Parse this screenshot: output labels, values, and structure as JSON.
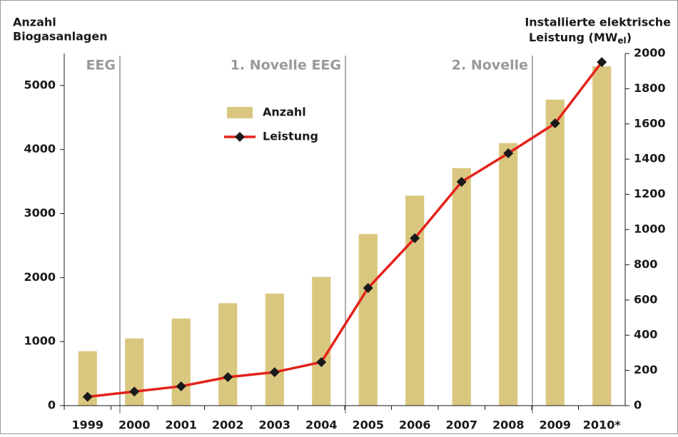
{
  "chart_data": {
    "type": "bar",
    "y_label": [
      "Anzahl",
      "Biogasanlagen"
    ],
    "y2_label": {
      "line1": "Installierte elektrische",
      "line2": "Leistung (MW",
      "sub": "el",
      "after": ")"
    },
    "categories": [
      "1999",
      "2000",
      "2001",
      "2002",
      "2003",
      "2004",
      "2005",
      "2006",
      "2007",
      "2008",
      "2009",
      "2010*"
    ],
    "series": [
      {
        "name": "Anzahl",
        "type": "bar",
        "color": "#dac77f",
        "axis": "y",
        "values": [
          850,
          1050,
          1360,
          1600,
          1750,
          2010,
          2680,
          3280,
          3710,
          4100,
          4780,
          5300
        ]
      },
      {
        "name": "Leistung",
        "type": "line",
        "color": "#e3231b",
        "marker_color": "#1a1a1a",
        "axis": "y2",
        "values": [
          50,
          80,
          110,
          162,
          190,
          247,
          668,
          951,
          1271,
          1433,
          1603,
          1951
        ]
      }
    ],
    "ylim": [
      0,
      5500
    ],
    "yticks": [
      0,
      1000,
      2000,
      3000,
      4000,
      5000
    ],
    "y2lim": [
      0,
      2000
    ],
    "y2ticks": [
      0,
      200,
      400,
      600,
      800,
      1000,
      1200,
      1400,
      1600,
      1800,
      2000
    ],
    "annotations": [
      "EEG",
      "1. Novelle EEG",
      "2. Novelle"
    ],
    "legend": "upper-center"
  }
}
